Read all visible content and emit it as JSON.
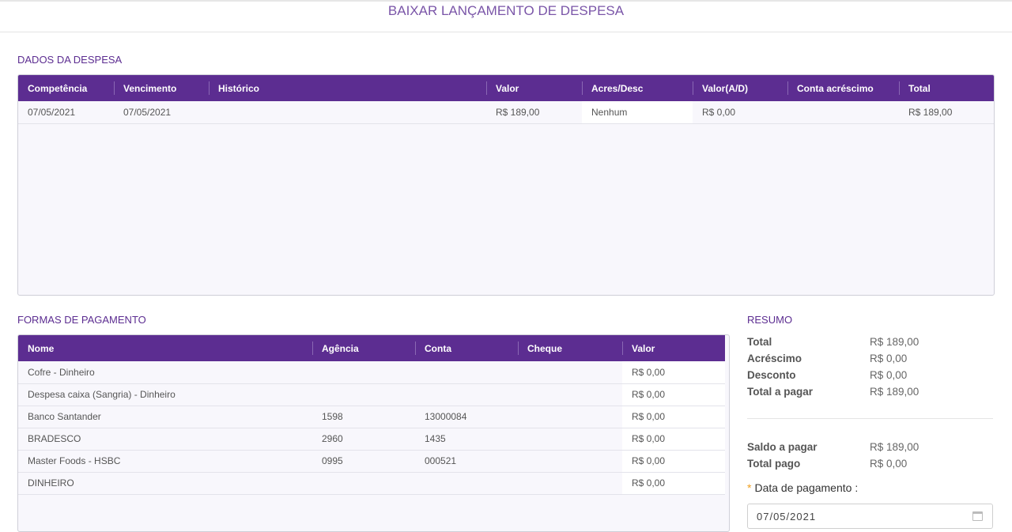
{
  "title": "BAIXAR LANÇAMENTO DE DESPESA",
  "dados": {
    "heading": "DADOS DA DESPESA",
    "columns": [
      "Competência",
      "Vencimento",
      "Histórico",
      "Valor",
      "Acres/Desc",
      "Valor(A/D)",
      "Conta acréscimo",
      "Total"
    ],
    "rows": [
      [
        "07/05/2021",
        "07/05/2021",
        "",
        "R$ 189,00",
        "Nenhum",
        "R$ 0,00",
        "",
        "R$ 189,00"
      ]
    ]
  },
  "formas": {
    "heading": "FORMAS DE PAGAMENTO",
    "columns": [
      "Nome",
      "Agência",
      "Conta",
      "Cheque",
      "Valor"
    ],
    "rows": [
      [
        "Cofre - Dinheiro",
        "",
        "",
        "",
        "R$ 0,00"
      ],
      [
        "Despesa caixa (Sangria) - Dinheiro",
        "",
        "",
        "",
        "R$ 0,00"
      ],
      [
        "Banco Santander",
        "1598",
        "13000084",
        "",
        "R$ 0,00"
      ],
      [
        "BRADESCO",
        "2960",
        "1435",
        "",
        "R$ 0,00"
      ],
      [
        "Master Foods - HSBC",
        "0995",
        "000521",
        "",
        "R$ 0,00"
      ],
      [
        "DINHEIRO",
        "",
        "",
        "",
        "R$ 0,00"
      ]
    ]
  },
  "resumo": {
    "heading": "RESUMO",
    "items": [
      {
        "label": "Total",
        "value": "R$ 189,00"
      },
      {
        "label": "Acréscimo",
        "value": "R$ 0,00"
      },
      {
        "label": "Desconto",
        "value": "R$ 0,00"
      },
      {
        "label": "Total a pagar",
        "value": "R$ 189,00"
      }
    ],
    "items2": [
      {
        "label": "Saldo a pagar",
        "value": "R$ 189,00"
      },
      {
        "label": "Total pago",
        "value": "R$ 0,00"
      }
    ],
    "date_label": "Data de pagamento :",
    "date_value": "07/05/2021"
  },
  "colors": {
    "accent": "#5c2d91"
  }
}
